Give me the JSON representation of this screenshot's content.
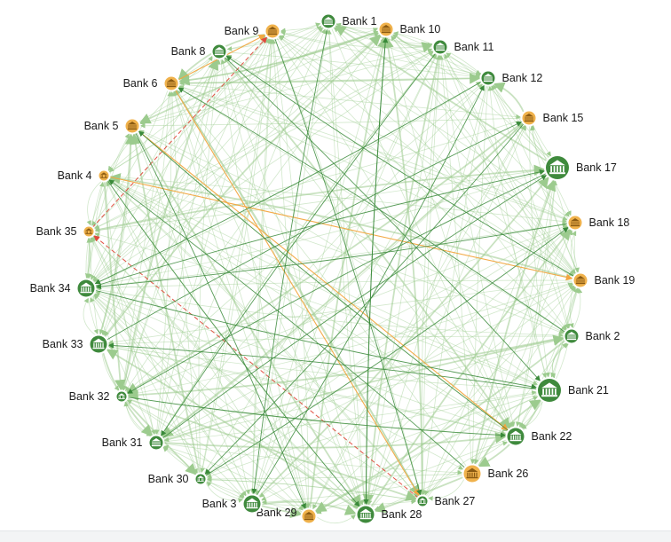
{
  "colors": {
    "normal_node": "#3f8a3d",
    "alert_node": "#f0b24c",
    "edge_normal_light": "#9ccb8e",
    "edge_normal_dark": "#3a8a3a",
    "edge_warning": "#f2a640",
    "edge_danger": "#e04a3c",
    "label": "#1a1a1a"
  },
  "node_icon": "bank-building-icon",
  "nodes": [
    {
      "id": "b1",
      "label": "Bank 1",
      "status": "normal",
      "size": "small"
    },
    {
      "id": "b10",
      "label": "Bank 10",
      "status": "alert",
      "size": "small"
    },
    {
      "id": "b11",
      "label": "Bank 11",
      "status": "normal",
      "size": "small"
    },
    {
      "id": "b12",
      "label": "Bank 12",
      "status": "normal",
      "size": "small"
    },
    {
      "id": "b15",
      "label": "Bank 15",
      "status": "alert",
      "size": "small"
    },
    {
      "id": "b17",
      "label": "Bank 17",
      "status": "normal",
      "size": "large"
    },
    {
      "id": "b18",
      "label": "Bank 18",
      "status": "alert",
      "size": "small"
    },
    {
      "id": "b19",
      "label": "Bank 19",
      "status": "alert",
      "size": "small"
    },
    {
      "id": "b2",
      "label": "Bank 2",
      "status": "normal",
      "size": "small"
    },
    {
      "id": "b21",
      "label": "Bank 21",
      "status": "normal",
      "size": "large"
    },
    {
      "id": "b22",
      "label": "Bank 22",
      "status": "normal",
      "size": "medium"
    },
    {
      "id": "b26",
      "label": "Bank 26",
      "status": "alert",
      "size": "medium"
    },
    {
      "id": "b27",
      "label": "Bank 27",
      "status": "normal",
      "size": "tiny"
    },
    {
      "id": "b28",
      "label": "Bank 28",
      "status": "normal",
      "size": "medium"
    },
    {
      "id": "b29",
      "label": "Bank 29",
      "status": "alert",
      "size": "small"
    },
    {
      "id": "b3",
      "label": "Bank 3",
      "status": "normal",
      "size": "medium"
    },
    {
      "id": "b30",
      "label": "Bank 30",
      "status": "normal",
      "size": "tiny"
    },
    {
      "id": "b31",
      "label": "Bank 31",
      "status": "normal",
      "size": "small"
    },
    {
      "id": "b32",
      "label": "Bank 32",
      "status": "normal",
      "size": "tiny"
    },
    {
      "id": "b33",
      "label": "Bank 33",
      "status": "normal",
      "size": "medium"
    },
    {
      "id": "b34",
      "label": "Bank 34",
      "status": "normal",
      "size": "medium"
    },
    {
      "id": "b35",
      "label": "Bank 35",
      "status": "alert",
      "size": "tiny"
    },
    {
      "id": "b4",
      "label": "Bank 4",
      "status": "alert",
      "size": "tiny"
    },
    {
      "id": "b5",
      "label": "Bank 5",
      "status": "alert",
      "size": "small"
    },
    {
      "id": "b6",
      "label": "Bank 6",
      "status": "alert",
      "size": "small"
    },
    {
      "id": "b8",
      "label": "Bank 8",
      "status": "normal",
      "size": "small"
    },
    {
      "id": "b9",
      "label": "Bank 9",
      "status": "alert",
      "size": "small"
    }
  ],
  "highlighted_edges": [
    {
      "from": "b6",
      "to": "b27",
      "kind": "warning"
    },
    {
      "from": "b5",
      "to": "b22",
      "kind": "warning"
    },
    {
      "from": "b4",
      "to": "b19",
      "kind": "warning"
    },
    {
      "from": "b6",
      "to": "b9",
      "kind": "warning"
    },
    {
      "from": "b27",
      "to": "b35",
      "kind": "danger"
    },
    {
      "from": "b35",
      "to": "b9",
      "kind": "danger"
    },
    {
      "from": "b34",
      "to": "b17",
      "kind": "dark"
    },
    {
      "from": "b34",
      "to": "b21",
      "kind": "dark"
    },
    {
      "from": "b31",
      "to": "b17",
      "kind": "dark"
    },
    {
      "from": "b3",
      "to": "b12",
      "kind": "dark"
    },
    {
      "from": "b8",
      "to": "b21",
      "kind": "dark"
    },
    {
      "from": "b4",
      "to": "b28",
      "kind": "dark"
    },
    {
      "from": "b33",
      "to": "b15",
      "kind": "dark"
    },
    {
      "from": "b30",
      "to": "b18",
      "kind": "dark"
    },
    {
      "from": "b5",
      "to": "b29",
      "kind": "dark"
    },
    {
      "from": "b1",
      "to": "b3",
      "kind": "dark"
    },
    {
      "from": "b9",
      "to": "b27",
      "kind": "dark"
    },
    {
      "from": "b11",
      "to": "b31",
      "kind": "dark"
    },
    {
      "from": "b12",
      "to": "b34",
      "kind": "dark"
    },
    {
      "from": "b17",
      "to": "b32",
      "kind": "dark"
    },
    {
      "from": "b19",
      "to": "b8",
      "kind": "dark"
    },
    {
      "from": "b2",
      "to": "b6",
      "kind": "dark"
    },
    {
      "from": "b22",
      "to": "b5",
      "kind": "dark"
    },
    {
      "from": "b26",
      "to": "b4",
      "kind": "dark"
    },
    {
      "from": "b28",
      "to": "b10",
      "kind": "dark"
    },
    {
      "from": "b21",
      "to": "b33",
      "kind": "dark"
    },
    {
      "from": "b15",
      "to": "b30",
      "kind": "dark"
    },
    {
      "from": "b10",
      "to": "b28",
      "kind": "dark"
    },
    {
      "from": "b18",
      "to": "b34",
      "kind": "dark"
    },
    {
      "from": "b32",
      "to": "b22",
      "kind": "dark"
    }
  ]
}
